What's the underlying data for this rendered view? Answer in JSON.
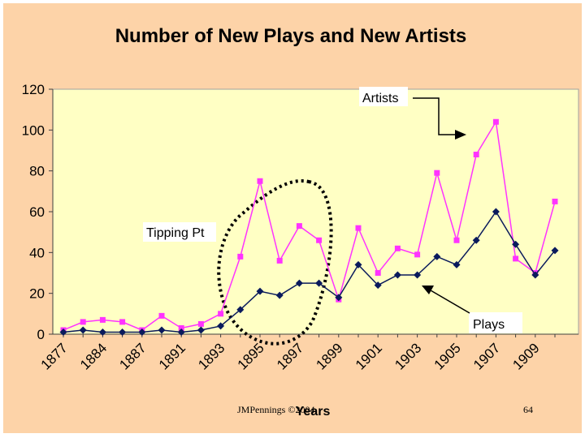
{
  "footer": {
    "author": "JMPennings ©2004",
    "page": "64"
  },
  "colors": {
    "background": "#fdd3a8",
    "plot_bg": "#ffffc4",
    "plays": "#0a1a5c",
    "artists": "#ff33ff"
  },
  "chart_data": {
    "type": "line",
    "title": "Number of New Plays and New Artists",
    "xlabel": "Years",
    "ylabel": "",
    "ylim": [
      0,
      120
    ],
    "yticks": [
      "0",
      "20",
      "40",
      "60",
      "80",
      "100",
      "120"
    ],
    "xtick_labels": [
      "1877",
      "1884",
      "1887",
      "1891",
      "1893",
      "1895",
      "1897",
      "1899",
      "1901",
      "1903",
      "1905",
      "1907",
      "1909"
    ],
    "grid": false,
    "series": [
      {
        "name": "Plays",
        "values": [
          1,
          2,
          1,
          1,
          1,
          2,
          1,
          2,
          4,
          12,
          21,
          19,
          25,
          25,
          18,
          34,
          24,
          29,
          29,
          38,
          34,
          46,
          60,
          44,
          29,
          41
        ]
      },
      {
        "name": "Artists",
        "values": [
          2,
          6,
          7,
          6,
          2,
          9,
          3,
          5,
          10,
          38,
          75,
          36,
          53,
          46,
          17,
          52,
          30,
          42,
          39,
          79,
          46,
          88,
          104,
          37,
          30,
          65
        ]
      }
    ],
    "annotations": [
      {
        "text": "Artists"
      },
      {
        "text": "Tipping Pt"
      },
      {
        "text": "Plays"
      }
    ]
  }
}
